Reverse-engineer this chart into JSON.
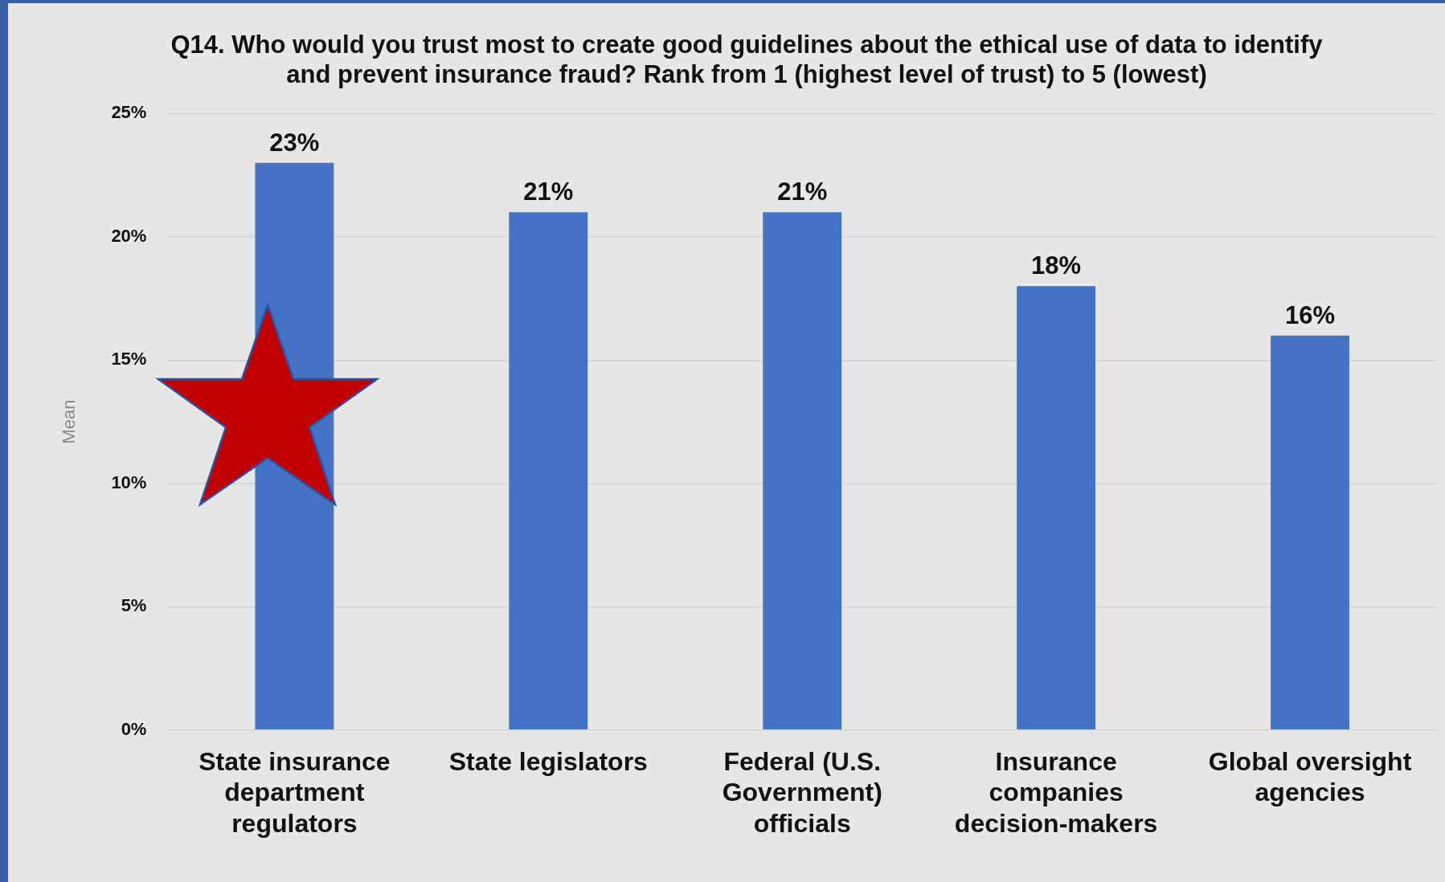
{
  "chart_data": {
    "type": "bar",
    "title": "Q14. Who would you trust most to create good guidelines about the ethical use of data to identify and prevent insurance fraud? Rank from 1 (highest level of trust) to 5 (lowest)",
    "ylabel": "Mean",
    "categories": [
      "State insurance department regulators",
      "State legislators",
      "Federal (U.S. Government) officials",
      "Insurance companies decision-makers",
      "Global oversight agencies"
    ],
    "values": [
      23,
      21,
      21,
      18,
      16
    ],
    "value_labels": [
      "23%",
      "21%",
      "21%",
      "18%",
      "16%"
    ],
    "color": "#4472c4",
    "ylim": [
      0,
      25
    ],
    "yticks": [
      {
        "value": 0,
        "label": "0%"
      },
      {
        "value": 5,
        "label": "5%"
      },
      {
        "value": 10,
        "label": "10%"
      },
      {
        "value": 15,
        "label": "15%"
      },
      {
        "value": 20,
        "label": "20%"
      },
      {
        "value": 25,
        "label": "25%"
      }
    ],
    "grid": "y",
    "legend": false
  }
}
